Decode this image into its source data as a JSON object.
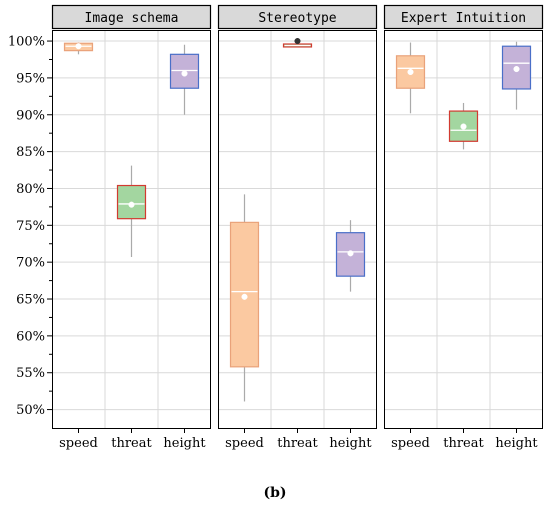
{
  "chart_data": {
    "type": "box",
    "caption": "(b)",
    "ylim": [
      0.475,
      1.015
    ],
    "yticks": [
      "100%",
      "95%",
      "90%",
      "85%",
      "80%",
      "75%",
      "70%",
      "65%",
      "60%",
      "55%",
      "50%"
    ],
    "ytick_values": [
      1.0,
      0.95,
      0.9,
      0.85,
      0.8,
      0.75,
      0.7,
      0.65,
      0.6,
      0.55,
      0.5
    ],
    "categories": [
      "speed",
      "threat",
      "height"
    ],
    "colors": {
      "speed": {
        "fill": "#fbc9a1",
        "edge": "#e9a27a"
      },
      "threat": {
        "fill": "#a3d6a0",
        "edge": "#d23a30"
      },
      "height": {
        "fill": "#c4b2d8",
        "edge": "#4a6fc8"
      }
    },
    "grid": true,
    "panels": [
      {
        "title": "Image schema",
        "boxes": [
          {
            "category": "speed",
            "whisker_low": 0.982,
            "q1": 0.987,
            "median": 0.993,
            "q3": 0.997,
            "whisker_high": 0.998,
            "mean": 0.993
          },
          {
            "category": "threat",
            "whisker_low": 0.707,
            "q1": 0.759,
            "median": 0.779,
            "q3": 0.804,
            "whisker_high": 0.831,
            "mean": 0.778
          },
          {
            "category": "height",
            "whisker_low": 0.9,
            "q1": 0.936,
            "median": 0.96,
            "q3": 0.982,
            "whisker_high": 0.995,
            "mean": 0.956
          }
        ]
      },
      {
        "title": "Stereotype",
        "boxes": [
          {
            "category": "speed",
            "whisker_low": 0.511,
            "q1": 0.558,
            "median": 0.66,
            "q3": 0.754,
            "whisker_high": 0.792,
            "mean": 0.653
          },
          {
            "category": "threat",
            "whisker_low": 0.992,
            "q1": 0.992,
            "median": 0.994,
            "q3": 0.996,
            "whisker_high": 0.996,
            "mean": 1.0
          },
          {
            "category": "height",
            "whisker_low": 0.66,
            "q1": 0.681,
            "median": 0.714,
            "q3": 0.74,
            "whisker_high": 0.757,
            "mean": 0.712
          }
        ]
      },
      {
        "title": "Expert Intuition",
        "boxes": [
          {
            "category": "speed",
            "whisker_low": 0.902,
            "q1": 0.936,
            "median": 0.963,
            "q3": 0.98,
            "whisker_high": 0.998,
            "mean": 0.958
          },
          {
            "category": "threat",
            "whisker_low": 0.853,
            "q1": 0.864,
            "median": 0.879,
            "q3": 0.905,
            "whisker_high": 0.916,
            "mean": 0.884
          },
          {
            "category": "height",
            "whisker_low": 0.907,
            "q1": 0.935,
            "median": 0.97,
            "q3": 0.993,
            "whisker_high": 0.999,
            "mean": 0.962
          }
        ]
      }
    ]
  }
}
